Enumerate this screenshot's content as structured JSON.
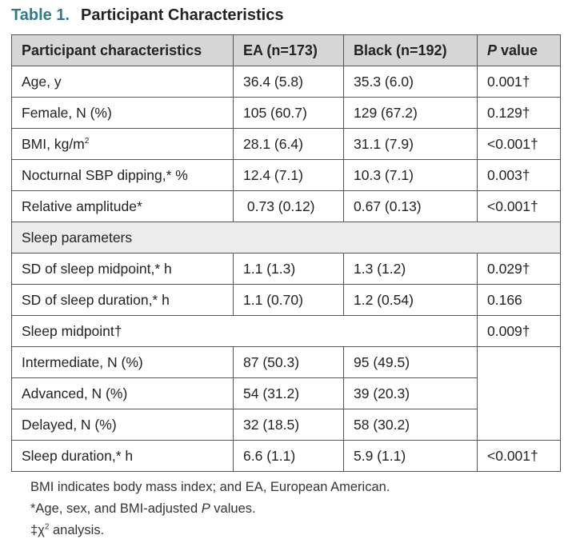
{
  "title": {
    "label": "Table 1.",
    "caption": "Participant Characteristics"
  },
  "header": {
    "col1": "Participant characteristics",
    "col2": "EA (n=173)",
    "col3": "Black (n=192)",
    "col4_italic": "P",
    "col4_rest": " value"
  },
  "rows": {
    "age": {
      "label": "Age, y",
      "ea": "36.4 (5.8)",
      "black": "35.3 (6.0)",
      "p": "0.001†"
    },
    "female": {
      "label": "Female, N (%)",
      "ea": "105 (60.7)",
      "black": "129 (67.2)",
      "p": "0.129†"
    },
    "bmi": {
      "label": "BMI, kg/m",
      "sup": "2",
      "ea": "28.1 (6.4)",
      "black": "31.1 (7.9)",
      "p": "<0.001†"
    },
    "dipping": {
      "label": "Nocturnal SBP dipping,* %",
      "ea": "12.4 (7.1)",
      "black": "10.3 (7.1)",
      "p": "0.003†"
    },
    "relamp": {
      "label": "Relative amplitude*",
      "ea": " 0.73 (0.12)",
      "black": "0.67 (0.13)",
      "p": "<0.001†"
    },
    "sleep_section": {
      "label": "Sleep parameters"
    },
    "sd_mid": {
      "label": "SD of sleep midpoint,* h",
      "ea": "1.1 (1.3)",
      "black": "1.3 (1.2)",
      "p": "0.029†"
    },
    "sd_dur": {
      "label": "SD of sleep duration,* h",
      "ea": "1.1 (0.70)",
      "black": "1.2 (0.54)",
      "p": "0.166"
    },
    "midpoint": {
      "label": "Sleep midpoint†",
      "p": "0.009†"
    },
    "intermediate": {
      "label": "Intermediate, N (%)",
      "ea": "87 (50.3)",
      "black": "95 (49.5)"
    },
    "advanced": {
      "label": "Advanced, N (%)",
      "ea": "54 (31.2)",
      "black": "39 (20.3)"
    },
    "delayed": {
      "label": "Delayed, N (%)",
      "ea": "32 (18.5)",
      "black": "58 (30.2)"
    },
    "duration": {
      "label": "Sleep duration,* h",
      "ea": "6.6 (1.1)",
      "black": "5.9 (1.1)",
      "p": "<0.001†"
    }
  },
  "notes": {
    "line1": "BMI indicates body mass index; and EA, European American.",
    "line2_prefix": "*Age, sex, and BMI-adjusted ",
    "line2_italic": "P",
    "line2_suffix": " values.",
    "line3_prefix": "‡χ",
    "line3_sup": "2",
    "line3_suffix": " analysis."
  }
}
